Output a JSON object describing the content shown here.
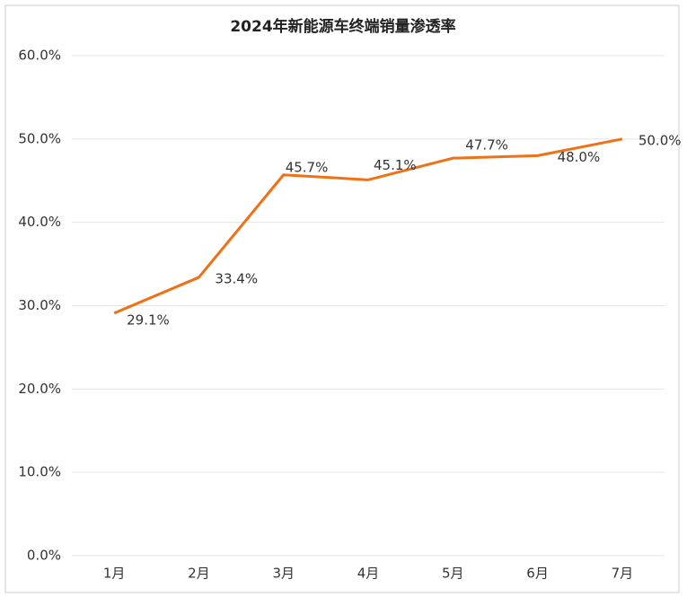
{
  "chart_data": {
    "type": "line",
    "title": "2024年新能源车终端销量渗透率",
    "categories": [
      "1月",
      "2月",
      "3月",
      "4月",
      "5月",
      "6月",
      "7月"
    ],
    "series": [
      {
        "name": "渗透率",
        "color": "#f07016",
        "values": [
          29.1,
          33.4,
          45.7,
          45.1,
          47.7,
          48.0,
          50.0
        ],
        "value_labels": [
          "29.1%",
          "33.4%",
          "45.7%",
          "45.1%",
          "47.7%",
          "48.0%",
          "50.0%"
        ]
      }
    ],
    "ylim": [
      0,
      60
    ],
    "yticks": [
      {
        "value": 0,
        "label": "0.0%"
      },
      {
        "value": 10,
        "label": "10.0%"
      },
      {
        "value": 20,
        "label": "20.0%"
      },
      {
        "value": 30,
        "label": "30.0%"
      },
      {
        "value": 40,
        "label": "40.0%"
      },
      {
        "value": 50,
        "label": "50.0%"
      },
      {
        "value": 60,
        "label": "60.0%"
      }
    ],
    "grid": true
  }
}
